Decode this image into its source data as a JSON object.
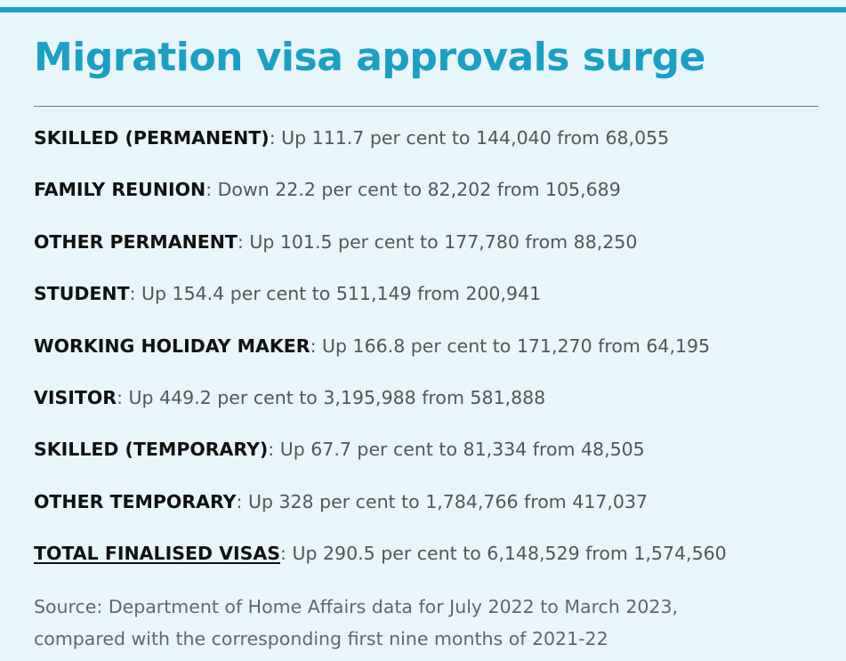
{
  "title": "Migration visa approvals surge",
  "colors": {
    "accent": "#1ba2c8",
    "background": "#e8f5fa",
    "label": "#111111",
    "detail": "#555555",
    "source": "#666666"
  },
  "stats": [
    {
      "label": "SKILLED (PERMANENT)",
      "detail": " Up 111.7 per cent to 144,040 from 68,055"
    },
    {
      "label": "FAMILY REUNION",
      "detail": " Down 22.2 per cent to 82,202 from 105,689"
    },
    {
      "label": "OTHER PERMANENT",
      "detail": " Up 101.5 per cent to 177,780 from 88,250"
    },
    {
      "label": "STUDENT",
      "detail": " Up 154.4 per cent to 511,149 from 200,941"
    },
    {
      "label": "WORKING HOLIDAY MAKER",
      "detail": " Up 166.8 per cent to 171,270 from 64,195"
    },
    {
      "label": "VISITOR",
      "detail": " Up 449.2 per cent to 3,195,988 from 581,888"
    },
    {
      "label": "SKILLED (TEMPORARY)",
      "detail": " Up 67.7 per cent to 81,334 from 48,505"
    },
    {
      "label": "OTHER TEMPORARY",
      "detail": " Up 328 per cent to 1,784,766 from 417,037"
    },
    {
      "label": "TOTAL FINALISED VISAS",
      "detail": " Up 290.5 per cent to 6,148,529 from 1,574,560"
    }
  ],
  "separator": ":",
  "source": {
    "line1": "Source: Department of Home Affairs data for July 2022 to March 2023,",
    "line2": "compared with the corresponding first nine months of 2021-22"
  }
}
